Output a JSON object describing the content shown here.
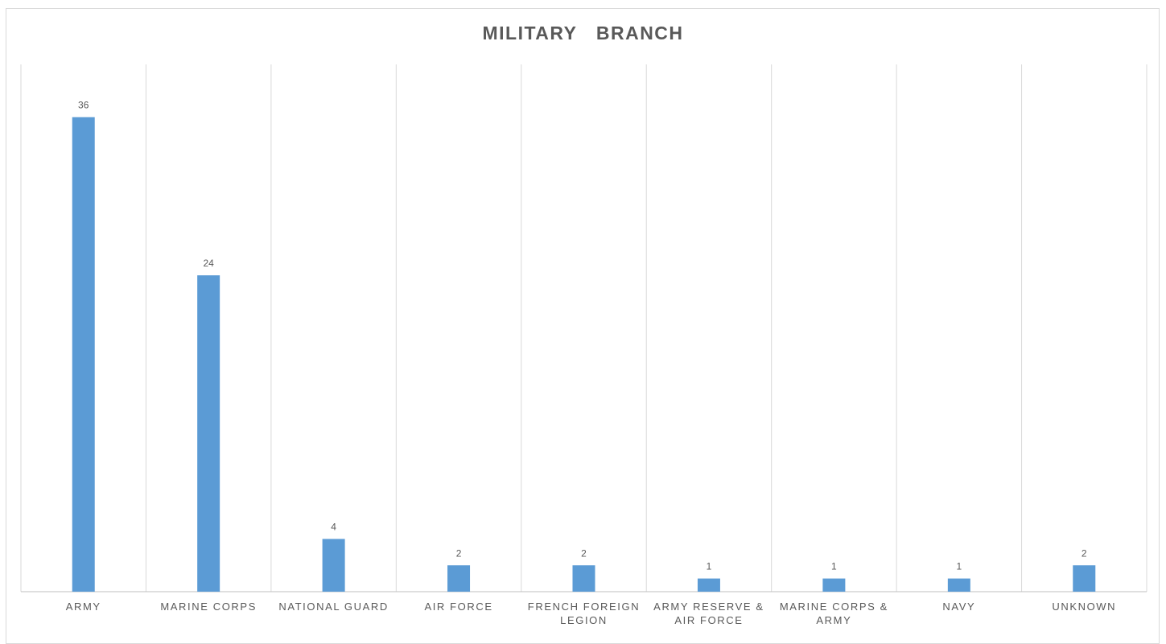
{
  "chart_data": {
    "type": "bar",
    "title": "MILITARY  BRANCH",
    "categories": [
      [
        "ARMY"
      ],
      [
        "MARINE CORPS"
      ],
      [
        "NATIONAL GUARD"
      ],
      [
        "AIR FORCE"
      ],
      [
        "FRENCH FOREIGN",
        "LEGION"
      ],
      [
        "ARMY RESERVE &",
        "AIR FORCE"
      ],
      [
        "MARINE CORPS &",
        "ARMY"
      ],
      [
        "NAVY"
      ],
      [
        "UNKNOWN"
      ]
    ],
    "values": [
      36,
      24,
      4,
      2,
      2,
      1,
      1,
      1,
      2
    ],
    "data_labels": [
      "36",
      "24",
      "4",
      "2",
      "2",
      "1",
      "1",
      "1",
      "2"
    ],
    "ylim": [
      0,
      40
    ],
    "xlabel": "",
    "ylabel": "",
    "grid": "vertical category separators",
    "legend": "none",
    "colors": {
      "bar": "#5b9bd5",
      "grid": "#d9d9d9",
      "axis": "#bfbfbf",
      "text": "#595959"
    }
  }
}
